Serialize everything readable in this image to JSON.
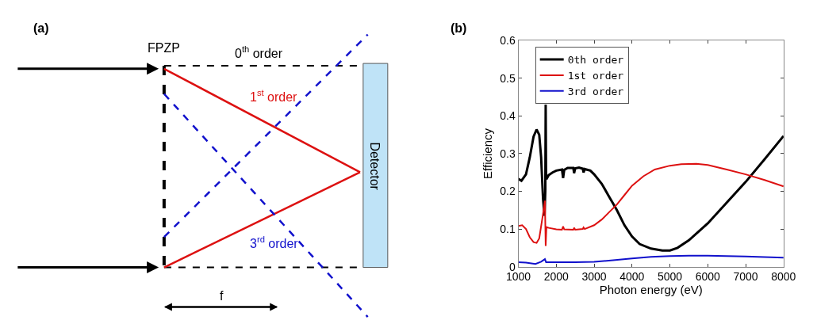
{
  "chart_data": [
    {
      "type": "other",
      "title": "(a)",
      "annotations": [
        "FPZP",
        "0$^{th}$ order",
        "1$^{st}$ order",
        "3$^{rd}$ order",
        "Detector",
        "f"
      ]
    },
    {
      "type": "line",
      "title": "(b)",
      "xlabel": "Photon energy (eV)",
      "ylabel": "Efficiency",
      "xlim": [
        1000,
        8000
      ],
      "xticks": [
        1000,
        2000,
        3000,
        4000,
        5000,
        6000,
        7000,
        8000
      ],
      "ylim": [
        0,
        0.6
      ],
      "yticks": [
        0,
        0.1,
        0.2,
        0.3,
        0.4,
        0.5,
        0.6
      ],
      "legend": "top left",
      "series": [
        {
          "name": "0th order",
          "color": "#000000",
          "x": [
            1000,
            1080,
            1200,
            1300,
            1400,
            1480,
            1550,
            1600,
            1650,
            1690,
            1710,
            1720,
            1730,
            1740,
            1800,
            1900,
            2000,
            2150,
            2180,
            2210,
            2300,
            2450,
            2470,
            2500,
            2600,
            2700,
            2720,
            2750,
            2900,
            3000,
            3200,
            3400,
            3600,
            3800,
            4000,
            4200,
            4500,
            4800,
            5000,
            5200,
            5500,
            6000,
            6500,
            7000,
            7500,
            8000
          ],
          "values": [
            0.233,
            0.228,
            0.245,
            0.29,
            0.345,
            0.364,
            0.35,
            0.29,
            0.18,
            0.135,
            0.2,
            0.43,
            0.25,
            0.232,
            0.243,
            0.25,
            0.255,
            0.258,
            0.235,
            0.257,
            0.262,
            0.262,
            0.248,
            0.261,
            0.263,
            0.26,
            0.25,
            0.259,
            0.255,
            0.245,
            0.22,
            0.185,
            0.15,
            0.11,
            0.08,
            0.06,
            0.048,
            0.043,
            0.043,
            0.05,
            0.07,
            0.115,
            0.17,
            0.225,
            0.285,
            0.347
          ]
        },
        {
          "name": "1st order",
          "color": "#dd1111",
          "x": [
            1000,
            1100,
            1200,
            1300,
            1400,
            1480,
            1550,
            1650,
            1700,
            1720,
            1740,
            1800,
            2000,
            2150,
            2180,
            2210,
            2450,
            2470,
            2500,
            2700,
            2720,
            2750,
            3000,
            3200,
            3400,
            3600,
            3800,
            4000,
            4300,
            4600,
            5000,
            5300,
            5700,
            6000,
            6500,
            7000,
            7500,
            8000
          ],
          "values": [
            0.108,
            0.11,
            0.1,
            0.078,
            0.065,
            0.063,
            0.075,
            0.14,
            0.175,
            0.055,
            0.105,
            0.103,
            0.099,
            0.098,
            0.107,
            0.099,
            0.098,
            0.103,
            0.098,
            0.1,
            0.104,
            0.1,
            0.11,
            0.125,
            0.145,
            0.165,
            0.19,
            0.215,
            0.24,
            0.258,
            0.268,
            0.272,
            0.273,
            0.27,
            0.258,
            0.245,
            0.23,
            0.213
          ]
        },
        {
          "name": "3rd order",
          "color": "#1111cc",
          "x": [
            1000,
            1200,
            1450,
            1600,
            1700,
            1730,
            1800,
            2500,
            3000,
            3500,
            4000,
            4500,
            5000,
            5500,
            6000,
            7000,
            8000
          ],
          "values": [
            0.012,
            0.011,
            0.007,
            0.013,
            0.02,
            0.012,
            0.012,
            0.012,
            0.013,
            0.017,
            0.022,
            0.026,
            0.028,
            0.029,
            0.029,
            0.027,
            0.024
          ]
        }
      ]
    }
  ]
}
